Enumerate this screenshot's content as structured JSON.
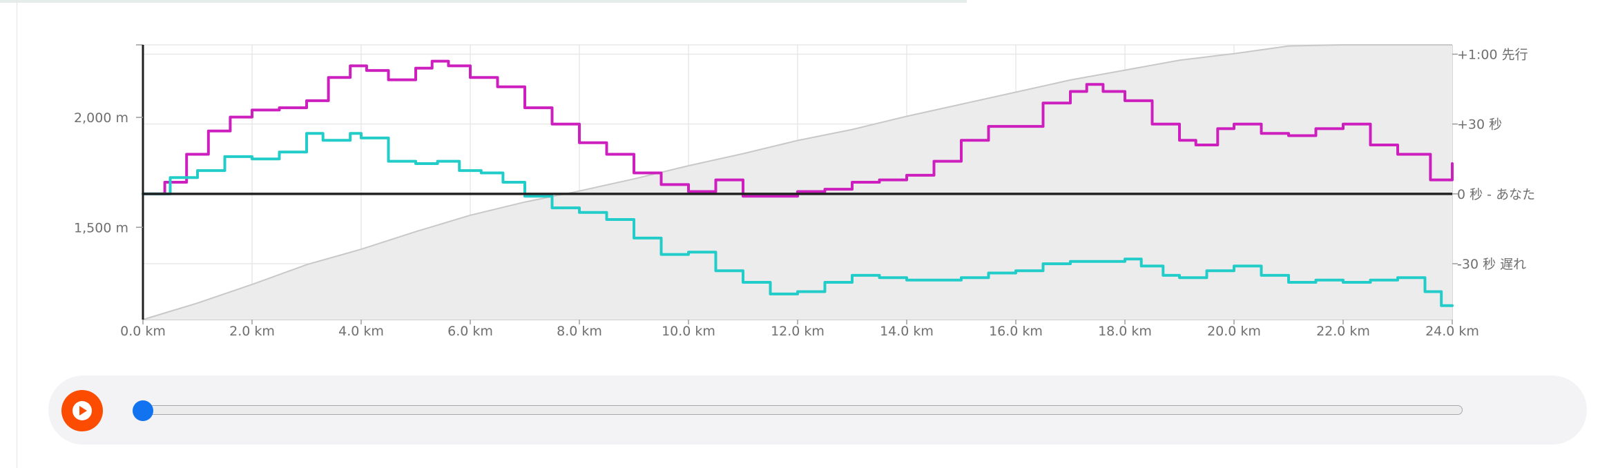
{
  "chart_data": {
    "type": "line",
    "x_unit": "km",
    "xlim": [
      0,
      24
    ],
    "x_ticks": [
      "0.0 km",
      "2.0 km",
      "4.0 km",
      "6.0 km",
      "8.0 km",
      "10.0 km",
      "12.0 km",
      "14.0 km",
      "16.0 km",
      "18.0 km",
      "20.0 km",
      "22.0 km",
      "24.0 km"
    ],
    "y_left": {
      "unit": "m",
      "lim": [
        1080,
        2330
      ],
      "ticks": [
        {
          "value": 2000,
          "label": "2,000 m"
        },
        {
          "value": 1500,
          "label": "1,500 m"
        }
      ]
    },
    "y_right": {
      "unit": "s",
      "lim": [
        -54,
        64
      ],
      "ticks": [
        {
          "value": 60,
          "label": "+1:00 先行"
        },
        {
          "value": 30,
          "label": "+30 秒"
        },
        {
          "value": 0,
          "label": "0 秒 - あなた"
        },
        {
          "value": -30,
          "label": "-30 秒 遅れ"
        }
      ]
    },
    "baseline_label": "0 秒 - あなた",
    "area_series": {
      "axis": "left",
      "color": "#c8c8c8",
      "fill": "#ececec",
      "x": [
        0,
        1,
        2,
        3,
        4,
        5,
        6,
        7,
        8,
        9,
        10,
        11,
        12,
        13,
        14,
        15,
        16,
        17,
        18,
        19,
        20,
        21,
        22,
        23,
        24
      ],
      "values": [
        1080,
        1155,
        1240,
        1330,
        1400,
        1480,
        1555,
        1615,
        1665,
        1720,
        1780,
        1835,
        1895,
        1945,
        2005,
        2060,
        2115,
        2170,
        2215,
        2260,
        2290,
        2325,
        2330,
        2335,
        2345
      ]
    },
    "series": [
      {
        "axis": "right",
        "color": "#cc1fbe",
        "x": [
          0,
          0.4,
          0.8,
          1.2,
          1.6,
          2.0,
          2.5,
          3.0,
          3.4,
          3.8,
          4.1,
          4.5,
          5.0,
          5.3,
          5.6,
          6.0,
          6.5,
          7.0,
          7.5,
          8.0,
          8.5,
          9.0,
          9.5,
          10.0,
          10.5,
          11.0,
          11.5,
          12.0,
          12.5,
          13.0,
          13.5,
          14.0,
          14.5,
          15.0,
          15.5,
          16.0,
          16.5,
          17.0,
          17.3,
          17.6,
          18.0,
          18.5,
          19.0,
          19.3,
          19.7,
          20.0,
          20.5,
          21.0,
          21.5,
          22.0,
          22.5,
          23.0,
          23.6,
          24.0
        ],
        "values": [
          0,
          5,
          17,
          27,
          33,
          36,
          37,
          40,
          50,
          55,
          53,
          49,
          54,
          57,
          55,
          50,
          46,
          37,
          30,
          22,
          17,
          9,
          4,
          1,
          6,
          -1,
          -1,
          1,
          2,
          5,
          6,
          8,
          14,
          23,
          29,
          29,
          39,
          44,
          47,
          44,
          40,
          30,
          23,
          21,
          28,
          30,
          26,
          25,
          28,
          30,
          21,
          17,
          6,
          13
        ]
      },
      {
        "axis": "right",
        "color": "#22ccc8",
        "x": [
          0,
          0.5,
          1.0,
          1.5,
          2.0,
          2.5,
          3.0,
          3.3,
          3.8,
          4.0,
          4.5,
          5.0,
          5.4,
          5.8,
          6.2,
          6.6,
          7.0,
          7.5,
          8.0,
          8.5,
          9.0,
          9.5,
          10.0,
          10.5,
          11.0,
          11.5,
          12.0,
          12.5,
          13.0,
          13.5,
          14.0,
          14.5,
          15.0,
          15.5,
          16.0,
          16.5,
          17.0,
          17.5,
          18.0,
          18.3,
          18.7,
          19.0,
          19.5,
          20.0,
          20.5,
          21.0,
          21.5,
          22.0,
          22.5,
          23.0,
          23.5,
          23.8,
          24.0
        ],
        "values": [
          0,
          7,
          10,
          16,
          15,
          18,
          26,
          23,
          26,
          24,
          14,
          13,
          14,
          10,
          9,
          5,
          -1,
          -6,
          -8,
          -11,
          -19,
          -26,
          -25,
          -33,
          -38,
          -43,
          -42,
          -38,
          -35,
          -36,
          -37,
          -37,
          -36,
          -34,
          -33,
          -30,
          -29,
          -29,
          -28,
          -31,
          -35,
          -36,
          -33,
          -31,
          -35,
          -38,
          -37,
          -38,
          -37,
          -36,
          -42,
          -48,
          -48
        ]
      }
    ],
    "player": {
      "position_fraction": 0.0
    }
  },
  "colors": {
    "accent": "#fc4c02",
    "slider_handle": "#1273f0",
    "baseline": "#222222"
  },
  "icons": {
    "play": "play-icon"
  }
}
